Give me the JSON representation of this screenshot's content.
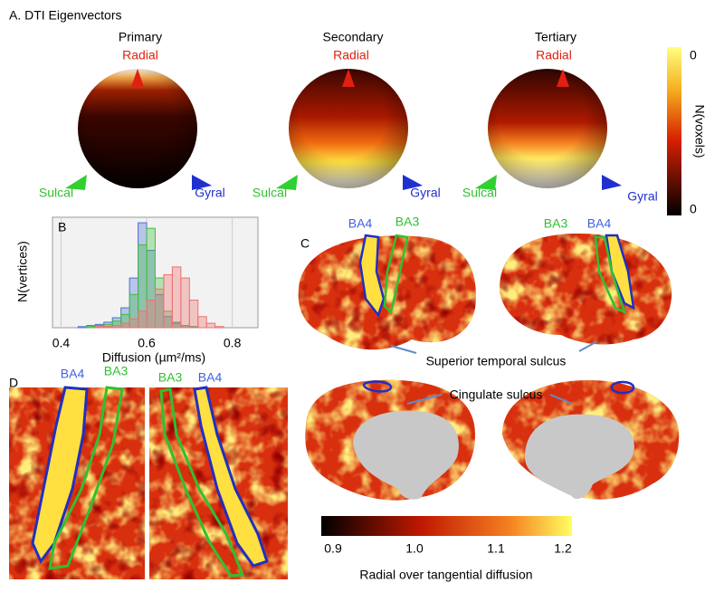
{
  "panel_a": {
    "label": "A. DTI Eigenvectors",
    "spheres": [
      {
        "title": "Primary",
        "top": "Radial",
        "left": "Sulcal",
        "right": "Gyral"
      },
      {
        "title": "Secondary",
        "top": "Radial",
        "left": "Sulcal",
        "right": "Gyral"
      },
      {
        "title": "Tertiary",
        "top": "Radial",
        "left": "Sulcal",
        "right": "Gyral"
      }
    ],
    "colorbar": {
      "label": "N(voxels)",
      "top_label": "0",
      "bottom_label": "0"
    }
  },
  "chart_data": {
    "type": "histogram",
    "panel_label": "B",
    "x_label": "Diffusion (µm²/ms)",
    "y_label": "N(vertices)",
    "bins": [
      0.44,
      0.46,
      0.48,
      0.5,
      0.52,
      0.54,
      0.56,
      0.58,
      0.6,
      0.62,
      0.64,
      0.66,
      0.68,
      0.7,
      0.72,
      0.74,
      0.76,
      0.78
    ],
    "series": [
      {
        "color": "#4d6fd6",
        "values": [
          1,
          2,
          3,
          5,
          9,
          18,
          45,
          95,
          70,
          30,
          10,
          4,
          2,
          1,
          0,
          0,
          0
        ]
      },
      {
        "color": "#3fbf3f",
        "values": [
          0,
          1,
          2,
          3,
          6,
          12,
          30,
          75,
          90,
          45,
          15,
          5,
          2,
          1,
          0,
          0,
          0
        ]
      },
      {
        "color": "#f07070",
        "values": [
          0,
          0,
          1,
          1,
          2,
          4,
          8,
          15,
          25,
          35,
          48,
          55,
          45,
          25,
          10,
          4,
          1
        ]
      }
    ],
    "xlim": [
      0.38,
      0.86
    ],
    "ylim": [
      0,
      100
    ],
    "xticks": [
      0.4,
      0.6,
      0.8
    ],
    "grid": true
  },
  "panel_c": {
    "label": "C",
    "left_labels": [
      "BA4",
      "BA3"
    ],
    "right_labels": [
      "BA3",
      "BA4"
    ],
    "annotations": [
      "Superior temporal sulcus",
      "Cingulate sulcus"
    ]
  },
  "panel_d": {
    "label": "D",
    "left_labels": [
      "BA4",
      "BA3"
    ],
    "right_labels": [
      "BA3",
      "BA4"
    ]
  },
  "colorbar": {
    "ticks": [
      "0.9",
      "1.0",
      "1.1",
      "1.2"
    ],
    "label": "Radial over tangential diffusion"
  }
}
